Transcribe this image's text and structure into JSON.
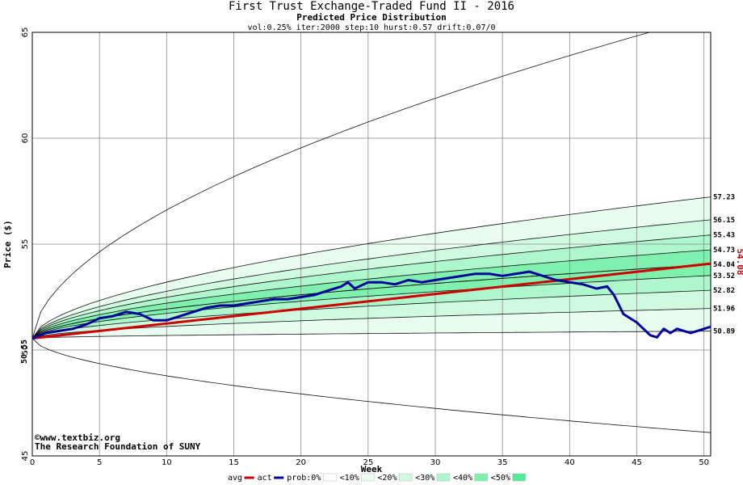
{
  "chart_data": {
    "type": "area",
    "title": "First Trust Exchange-Traded Fund II - 2016",
    "subtitle": "Predicted Price Distribution",
    "params": "vol:0.25% iter:2000 step:10 hurst:0.57 drift:0.07/0",
    "xlabel": "Week",
    "ylabel": "Price ($)",
    "xlim": [
      0,
      50.5
    ],
    "ylim": [
      45,
      65
    ],
    "x_ticks": [
      0,
      5,
      10,
      15,
      20,
      25,
      30,
      35,
      40,
      45,
      50
    ],
    "y_ticks": [
      45,
      50,
      55,
      60,
      65
    ],
    "grid": true,
    "start_price_label": "50.55",
    "end_actual_label": "54.08",
    "right_labels": [
      "57.23",
      "56.15",
      "55.43",
      "54.73",
      "54.04",
      "53.52",
      "52.82",
      "51.96",
      "50.89"
    ],
    "start": 50.55,
    "bands": [
      {
        "name": "prob:0%",
        "upper_end": 65.8,
        "lower_end": 46.1,
        "color": "#ffffff"
      },
      {
        "name": "<10%",
        "upper_end": 57.23,
        "lower_end": 50.89,
        "color": "#e8fcef"
      },
      {
        "name": "<20%",
        "upper_end": 56.15,
        "lower_end": 51.96,
        "color": "#cffae0"
      },
      {
        "name": "<30%",
        "upper_end": 55.43,
        "lower_end": 52.82,
        "color": "#aef6cb"
      },
      {
        "name": "<40%",
        "upper_end": 54.73,
        "lower_end": 53.52,
        "color": "#7ff0ae"
      },
      {
        "name": "<50%",
        "upper_end": 54.04,
        "lower_end": 54.04,
        "color": "#55ea95"
      }
    ],
    "series": [
      {
        "name": "avg",
        "color": "#cc0000",
        "x": [
          0,
          50.5
        ],
        "y": [
          50.55,
          54.08
        ]
      },
      {
        "name": "act",
        "color": "#000099",
        "x": [
          0,
          1,
          2,
          3,
          4,
          5,
          6,
          7,
          8,
          9,
          10,
          11,
          12,
          13,
          14,
          15,
          16,
          17,
          18,
          19,
          20,
          21,
          22,
          23,
          23.5,
          24,
          25,
          26,
          27,
          28,
          29,
          30,
          31,
          32,
          33,
          34,
          35,
          36,
          37,
          38,
          39,
          40,
          41,
          42,
          42.8,
          43.3,
          44,
          45,
          46,
          46.5,
          47,
          47.5,
          48,
          48.5,
          49,
          49.5,
          50,
          50.5
        ],
        "y": [
          50.55,
          50.8,
          50.9,
          51.0,
          51.2,
          51.5,
          51.6,
          51.8,
          51.7,
          51.4,
          51.4,
          51.6,
          51.8,
          52.0,
          52.1,
          52.1,
          52.2,
          52.3,
          52.4,
          52.4,
          52.5,
          52.6,
          52.8,
          53.0,
          53.2,
          52.9,
          53.2,
          53.2,
          53.1,
          53.3,
          53.2,
          53.3,
          53.4,
          53.5,
          53.6,
          53.6,
          53.5,
          53.6,
          53.7,
          53.5,
          53.3,
          53.2,
          53.1,
          52.9,
          53.0,
          52.6,
          51.7,
          51.3,
          50.7,
          50.6,
          51.0,
          50.8,
          51.0,
          50.9,
          50.8,
          50.9,
          51.0,
          51.1
        ]
      }
    ]
  },
  "watermark": {
    "copyright": "©www.textbiz.org",
    "foundation": "The Research Foundation of SUNY"
  },
  "legend": [
    {
      "label": "avg",
      "kind": "line",
      "color": "#cc0000"
    },
    {
      "label": "act",
      "kind": "line",
      "color": "#000099"
    },
    {
      "label": "prob:0%",
      "kind": "box",
      "color": "#ffffff"
    },
    {
      "label": "<10%",
      "kind": "box",
      "color": "#e8fcef"
    },
    {
      "label": "<20%",
      "kind": "box",
      "color": "#cffae0"
    },
    {
      "label": "<30%",
      "kind": "box",
      "color": "#aef6cb"
    },
    {
      "label": "<40%",
      "kind": "box",
      "color": "#7ff0ae"
    },
    {
      "label": "<50%",
      "kind": "box",
      "color": "#55ea95"
    }
  ]
}
